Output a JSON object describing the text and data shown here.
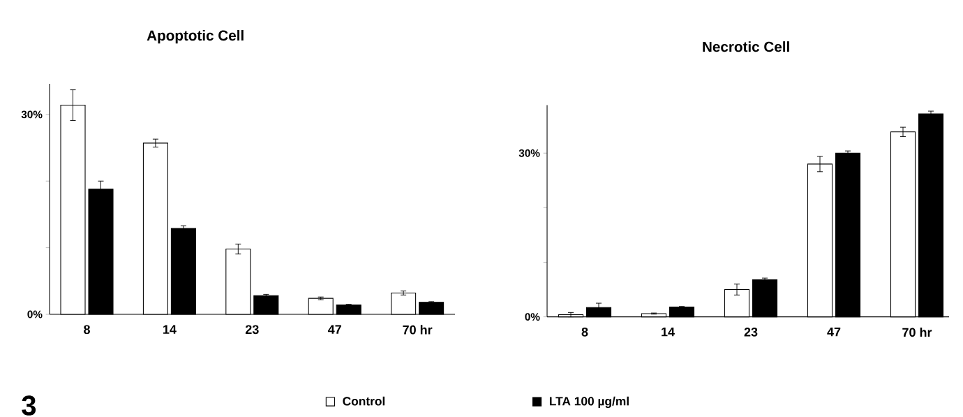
{
  "chart_data": [
    {
      "type": "bar",
      "title": "Apoptotic Cell",
      "categories": [
        "8",
        "14",
        "23",
        "47",
        "70 hr"
      ],
      "series": [
        {
          "name": "Control",
          "color": "#ffffff",
          "values": [
            31.4,
            25.7,
            9.8,
            2.4,
            3.2
          ],
          "errors": [
            2.3,
            0.6,
            0.75,
            0.2,
            0.3
          ]
        },
        {
          "name": "LTA 100 µg/ml",
          "color": "#000000",
          "values": [
            18.8,
            12.9,
            2.8,
            1.4,
            1.8
          ],
          "errors": [
            1.2,
            0.4,
            0.2,
            0.1,
            0.1
          ]
        }
      ],
      "ylim": [
        0,
        34.6
      ],
      "yticks": [
        {
          "value": 0,
          "label": "0%"
        },
        {
          "value": 10,
          "label": null
        },
        {
          "value": 20,
          "label": null
        },
        {
          "value": 30,
          "label": "30%"
        }
      ],
      "legend": "bottom",
      "annotations": [
        "3"
      ]
    },
    {
      "type": "bar",
      "title": "Necrotic Cell",
      "categories": [
        "8",
        "14",
        "23",
        "47",
        "70 hr"
      ],
      "series": [
        {
          "color": "#ffffff",
          "values": [
            0.4,
            0.6,
            5.0,
            28.0,
            33.9
          ],
          "errors": [
            0.4,
            0.1,
            1.0,
            1.4,
            0.85
          ]
        },
        {
          "color": "#000000",
          "values": [
            1.7,
            1.8,
            6.8,
            30.0,
            37.2
          ],
          "errors": [
            0.8,
            0.1,
            0.3,
            0.4,
            0.5
          ]
        }
      ],
      "ylim": [
        0,
        38.8
      ],
      "yticks": [
        {
          "value": 0,
          "label": "0%"
        },
        {
          "value": 10,
          "label": null
        },
        {
          "value": 20,
          "label": null
        },
        {
          "value": 30,
          "label": "30%"
        }
      ]
    }
  ]
}
